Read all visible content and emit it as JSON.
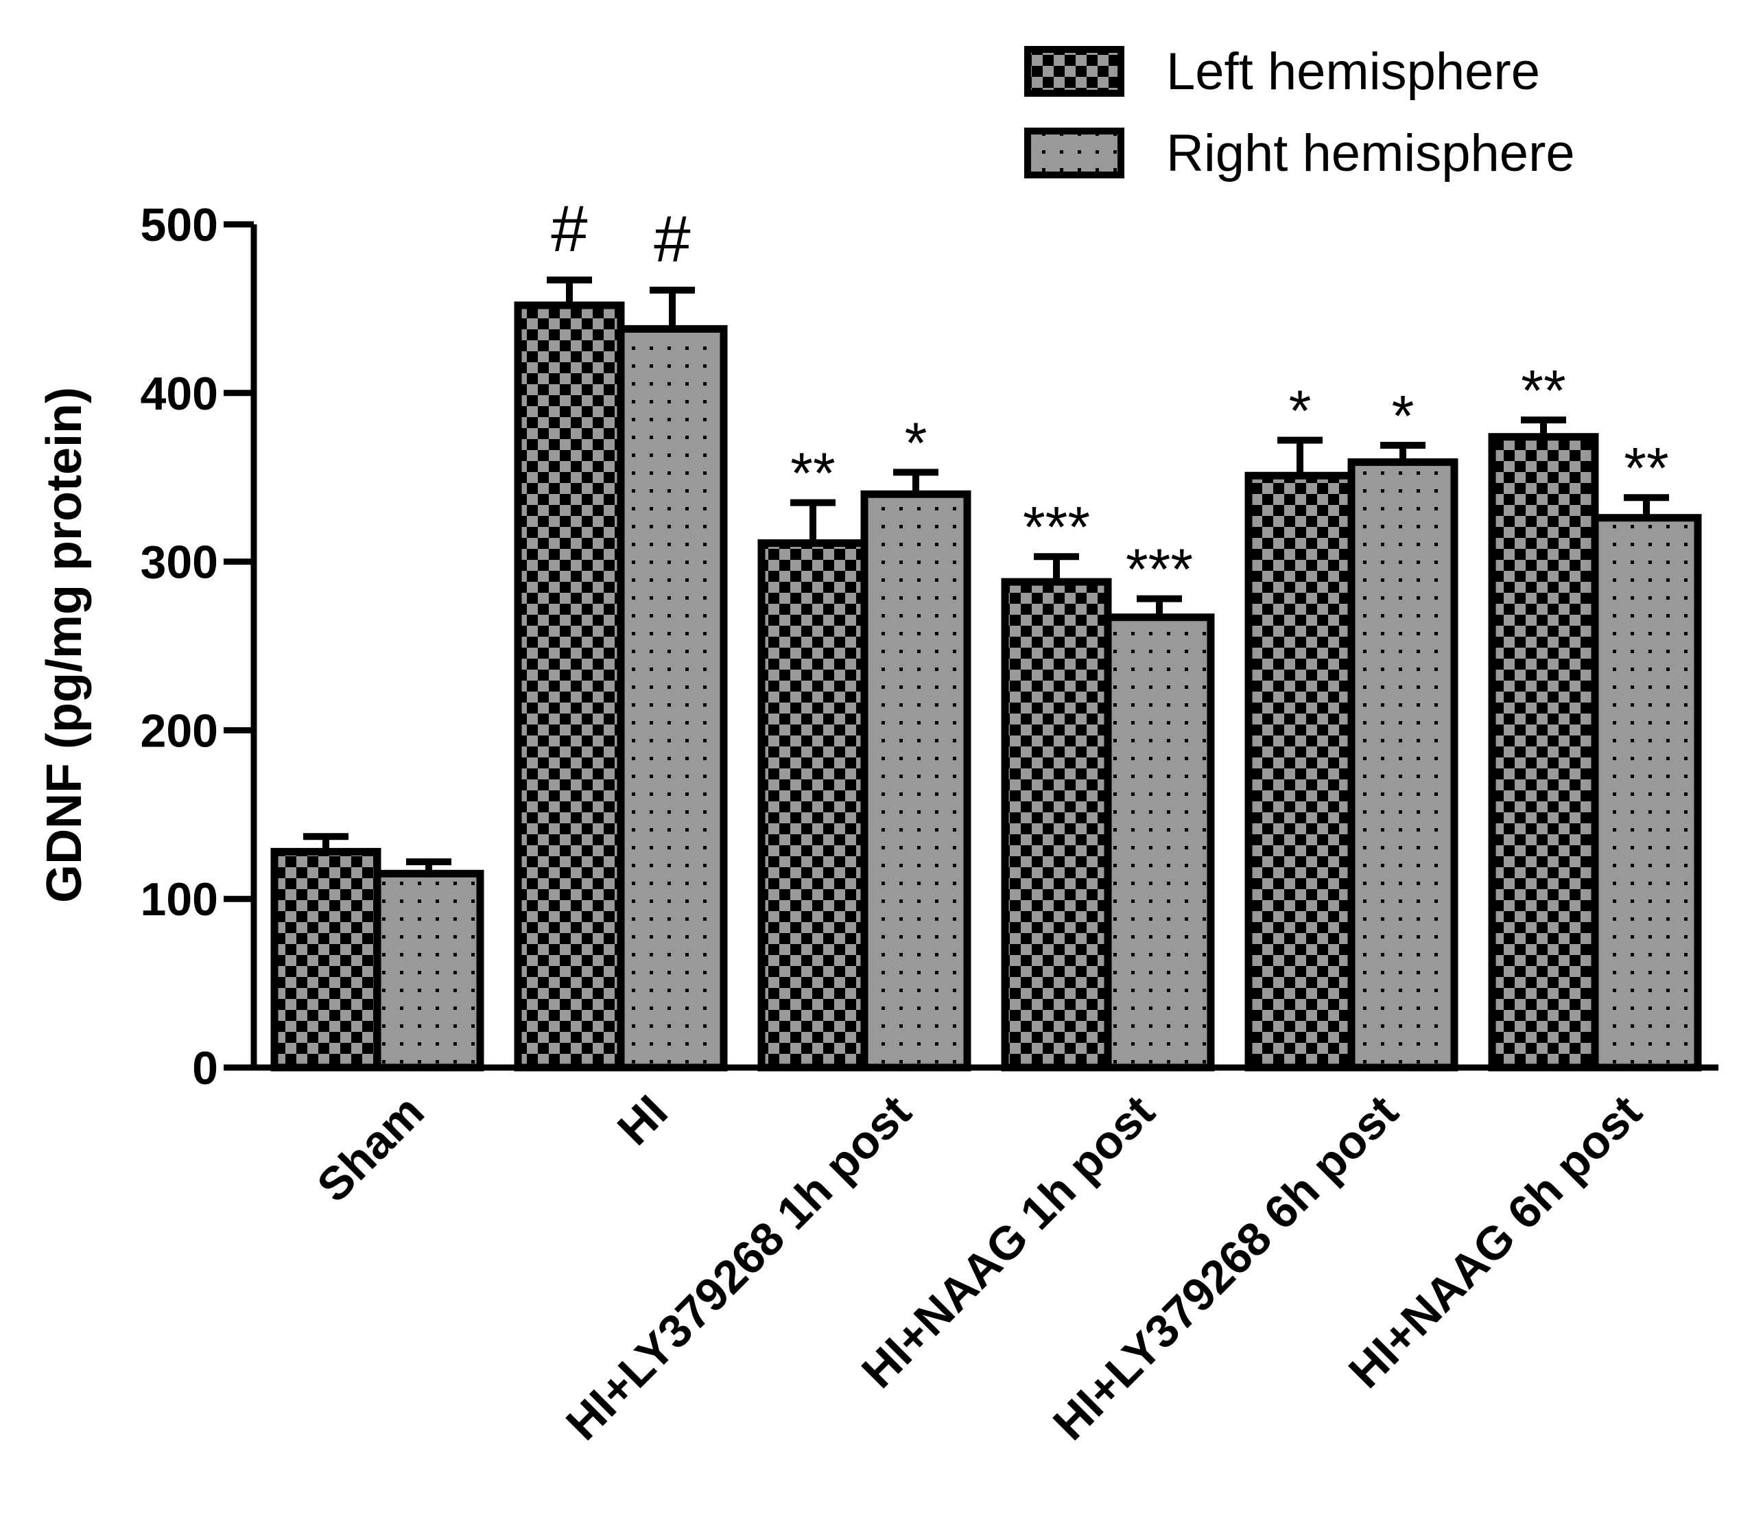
{
  "chart_data": {
    "type": "bar",
    "title": "",
    "xlabel": "",
    "ylabel": "GDNF (pg/mg protein)",
    "ylim": [
      0,
      500
    ],
    "yticks": [
      0,
      100,
      200,
      300,
      400,
      500
    ],
    "ytick_labels": [
      "0",
      "100",
      "200",
      "300",
      "400",
      "500"
    ],
    "grid": false,
    "legend_position": "top-right",
    "categories": [
      "Sham",
      "HI",
      "HI+LY379268 1h post",
      "HI+NAAG 1h post",
      "HI+LY379268 6h post",
      "HI+NAAG 6h post"
    ],
    "series": [
      {
        "name": "Left hemisphere",
        "pattern": "checkerboard",
        "colors": [
          "#000000",
          "#999999"
        ],
        "values": [
          128,
          452,
          311,
          288,
          351,
          374
        ],
        "errors": [
          9,
          15,
          24,
          15,
          21,
          10
        ],
        "significance": [
          "",
          "#",
          "**",
          "***",
          "*",
          "**"
        ]
      },
      {
        "name": "Right hemisphere",
        "pattern": "dotted",
        "colors": [
          "#999999",
          "#000000"
        ],
        "values": [
          115,
          438,
          340,
          267,
          359,
          326
        ],
        "errors": [
          7,
          23,
          13,
          11,
          10,
          12
        ],
        "significance": [
          "",
          "#",
          "*",
          "***",
          "*",
          "**"
        ]
      }
    ]
  }
}
